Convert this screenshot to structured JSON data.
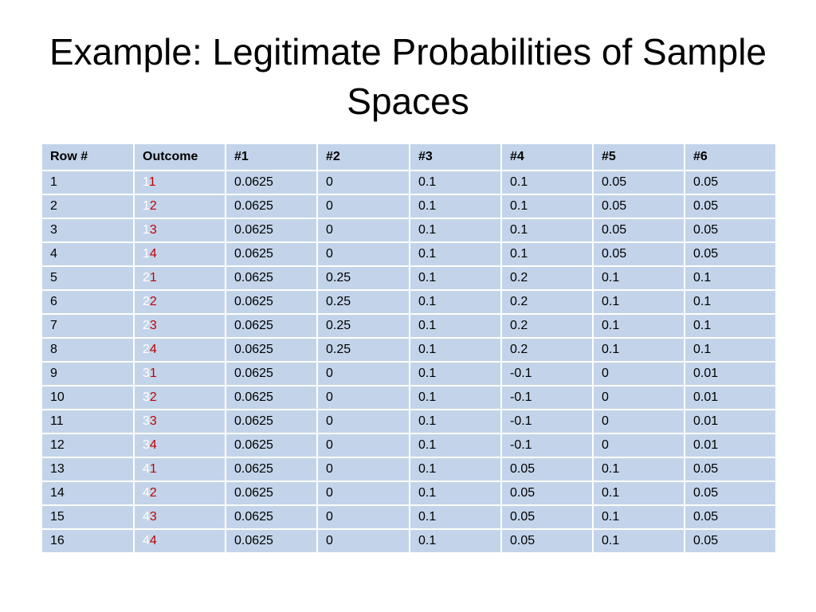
{
  "slide": {
    "title": "Example: Legitimate Probabilities of Sample Spaces"
  },
  "table": {
    "headers": [
      "Row #",
      "Outcome",
      "#1",
      "#2",
      "#3",
      "#4",
      "#5",
      "#6"
    ],
    "rows": [
      {
        "row": "1",
        "d1": "1",
        "d2": "1",
        "c1": "0.0625",
        "c2": "0",
        "c3": "0.1",
        "c4": "0.1",
        "c5": "0.05",
        "c6": "0.05"
      },
      {
        "row": "2",
        "d1": "1",
        "d2": "2",
        "c1": "0.0625",
        "c2": "0",
        "c3": "0.1",
        "c4": "0.1",
        "c5": "0.05",
        "c6": "0.05"
      },
      {
        "row": "3",
        "d1": "1",
        "d2": "3",
        "c1": "0.0625",
        "c2": "0",
        "c3": "0.1",
        "c4": "0.1",
        "c5": "0.05",
        "c6": "0.05"
      },
      {
        "row": "4",
        "d1": "1",
        "d2": "4",
        "c1": "0.0625",
        "c2": "0",
        "c3": "0.1",
        "c4": "0.1",
        "c5": "0.05",
        "c6": "0.05"
      },
      {
        "row": "5",
        "d1": "2",
        "d2": "1",
        "c1": "0.0625",
        "c2": "0.25",
        "c3": "0.1",
        "c4": "0.2",
        "c5": "0.1",
        "c6": "0.1"
      },
      {
        "row": "6",
        "d1": "2",
        "d2": "2",
        "c1": "0.0625",
        "c2": "0.25",
        "c3": "0.1",
        "c4": "0.2",
        "c5": "0.1",
        "c6": "0.1"
      },
      {
        "row": "7",
        "d1": "2",
        "d2": "3",
        "c1": "0.0625",
        "c2": "0.25",
        "c3": "0.1",
        "c4": "0.2",
        "c5": "0.1",
        "c6": "0.1"
      },
      {
        "row": "8",
        "d1": "2",
        "d2": "4",
        "c1": "0.0625",
        "c2": "0.25",
        "c3": "0.1",
        "c4": "0.2",
        "c5": "0.1",
        "c6": "0.1"
      },
      {
        "row": "9",
        "d1": "3",
        "d2": "1",
        "c1": "0.0625",
        "c2": "0",
        "c3": "0.1",
        "c4": "-0.1",
        "c5": "0",
        "c6": "0.01"
      },
      {
        "row": "10",
        "d1": "3",
        "d2": "2",
        "c1": "0.0625",
        "c2": "0",
        "c3": "0.1",
        "c4": "-0.1",
        "c5": "0",
        "c6": "0.01"
      },
      {
        "row": "11",
        "d1": "3",
        "d2": "3",
        "c1": "0.0625",
        "c2": "0",
        "c3": "0.1",
        "c4": "-0.1",
        "c5": "0",
        "c6": "0.01"
      },
      {
        "row": "12",
        "d1": "3",
        "d2": "4",
        "c1": "0.0625",
        "c2": "0",
        "c3": "0.1",
        "c4": "-0.1",
        "c5": "0",
        "c6": "0.01"
      },
      {
        "row": "13",
        "d1": "4",
        "d2": "1",
        "c1": "0.0625",
        "c2": "0",
        "c3": "0.1",
        "c4": "0.05",
        "c5": "0.1",
        "c6": "0.05"
      },
      {
        "row": "14",
        "d1": "4",
        "d2": "2",
        "c1": "0.0625",
        "c2": "0",
        "c3": "0.1",
        "c4": "0.05",
        "c5": "0.1",
        "c6": "0.05"
      },
      {
        "row": "15",
        "d1": "4",
        "d2": "3",
        "c1": "0.0625",
        "c2": "0",
        "c3": "0.1",
        "c4": "0.05",
        "c5": "0.1",
        "c6": "0.05"
      },
      {
        "row": "16",
        "d1": "4",
        "d2": "4",
        "c1": "0.0625",
        "c2": "0",
        "c3": "0.1",
        "c4": "0.05",
        "c5": "0.1",
        "c6": "0.05"
      }
    ]
  },
  "colors": {
    "cell_background": "#c3d4ea",
    "first_die_digit": "#ffffff",
    "second_die_digit": "#c00000"
  }
}
